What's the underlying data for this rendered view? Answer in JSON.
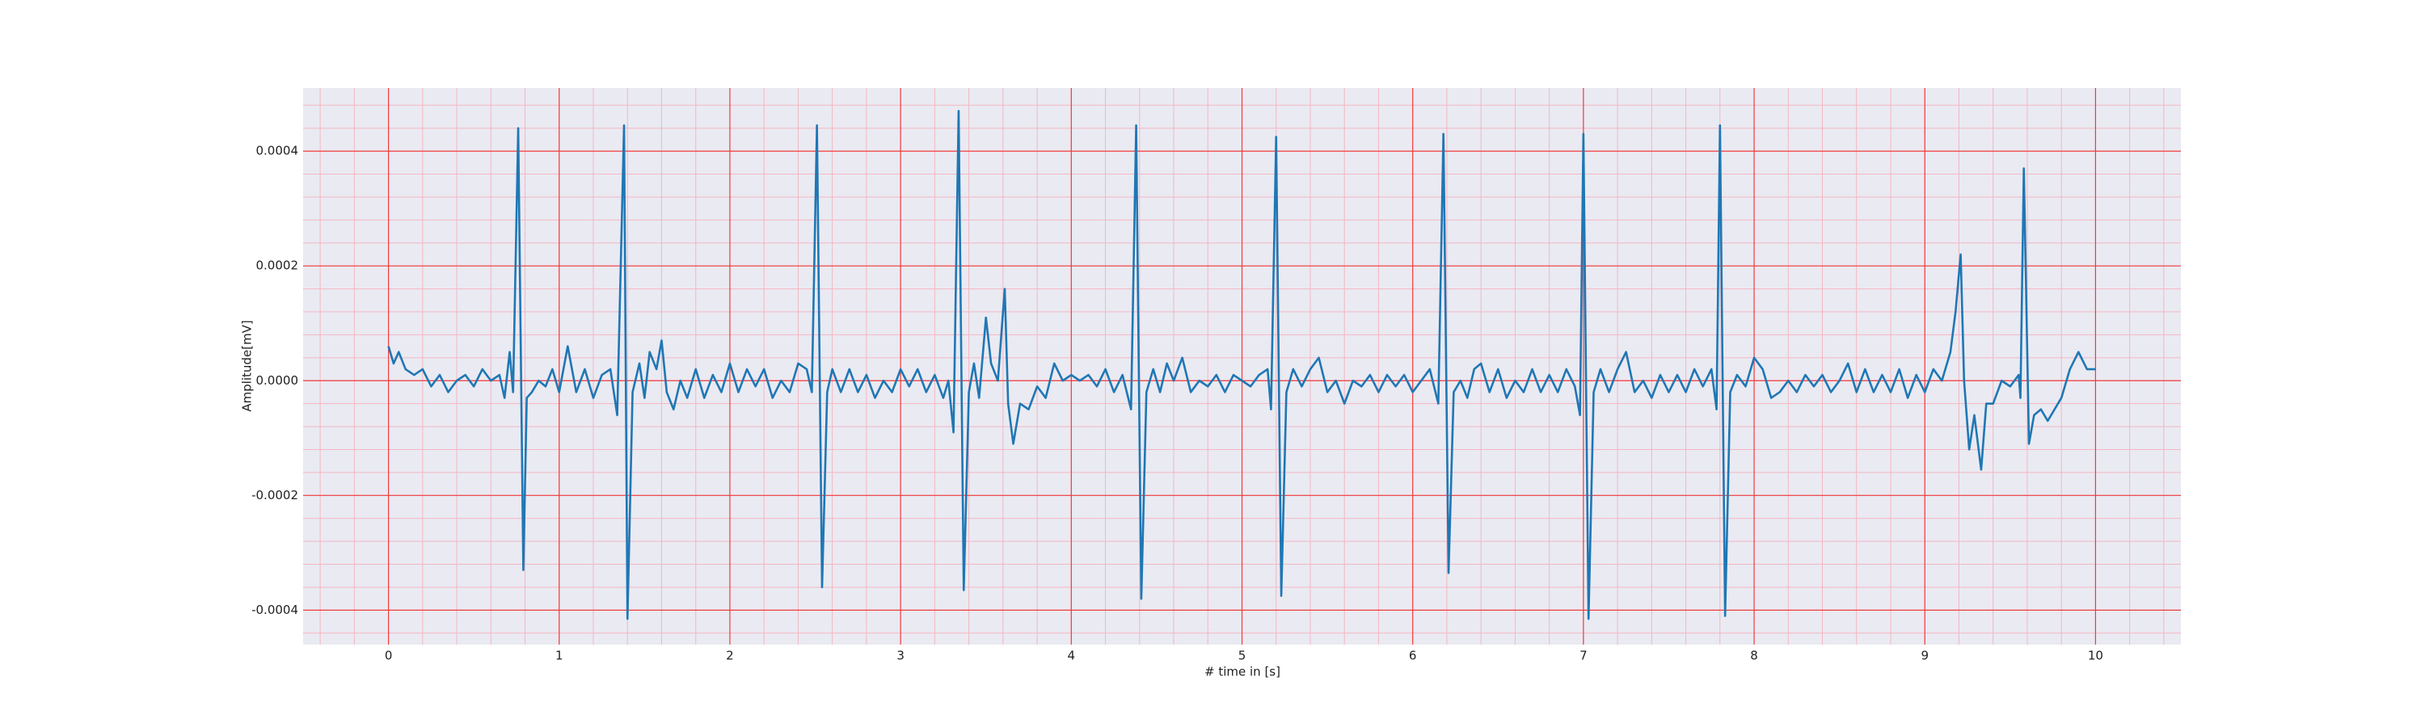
{
  "chart_data": {
    "type": "line",
    "xlabel": "# time in [s]",
    "ylabel": "Amplitude[mV]",
    "color": "#1f77b4",
    "x": [
      0,
      0.03,
      0.06,
      0.1,
      0.15,
      0.2,
      0.25,
      0.3,
      0.35,
      0.4,
      0.45,
      0.5,
      0.55,
      0.6,
      0.65,
      0.68,
      0.71,
      0.73,
      0.76,
      0.79,
      0.81,
      0.84,
      0.88,
      0.92,
      0.96,
      1.0,
      1.05,
      1.1,
      1.15,
      1.2,
      1.25,
      1.3,
      1.34,
      1.38,
      1.4,
      1.43,
      1.47,
      1.5,
      1.53,
      1.57,
      1.6,
      1.63,
      1.67,
      1.71,
      1.75,
      1.8,
      1.85,
      1.9,
      1.95,
      2.0,
      2.05,
      2.1,
      2.15,
      2.2,
      2.25,
      2.3,
      2.35,
      2.4,
      2.45,
      2.48,
      2.51,
      2.54,
      2.57,
      2.6,
      2.65,
      2.7,
      2.75,
      2.8,
      2.85,
      2.9,
      2.95,
      3.0,
      3.05,
      3.1,
      3.15,
      3.2,
      3.25,
      3.28,
      3.31,
      3.34,
      3.37,
      3.4,
      3.43,
      3.46,
      3.5,
      3.53,
      3.57,
      3.61,
      3.63,
      3.66,
      3.7,
      3.75,
      3.8,
      3.85,
      3.9,
      3.95,
      4.0,
      4.05,
      4.1,
      4.15,
      4.2,
      4.25,
      4.3,
      4.35,
      4.38,
      4.41,
      4.44,
      4.48,
      4.52,
      4.56,
      4.6,
      4.65,
      4.7,
      4.75,
      4.8,
      4.85,
      4.9,
      4.95,
      5.0,
      5.05,
      5.1,
      5.15,
      5.17,
      5.2,
      5.23,
      5.26,
      5.3,
      5.35,
      5.4,
      5.45,
      5.5,
      5.55,
      5.6,
      5.65,
      5.7,
      5.75,
      5.8,
      5.85,
      5.9,
      5.95,
      6.0,
      6.05,
      6.1,
      6.15,
      6.18,
      6.21,
      6.24,
      6.28,
      6.32,
      6.36,
      6.4,
      6.45,
      6.5,
      6.55,
      6.6,
      6.65,
      6.7,
      6.75,
      6.8,
      6.85,
      6.9,
      6.95,
      6.98,
      7.0,
      7.03,
      7.06,
      7.1,
      7.15,
      7.2,
      7.25,
      7.3,
      7.35,
      7.4,
      7.45,
      7.5,
      7.55,
      7.6,
      7.65,
      7.7,
      7.75,
      7.78,
      7.8,
      7.83,
      7.86,
      7.9,
      7.95,
      8.0,
      8.05,
      8.1,
      8.15,
      8.2,
      8.25,
      8.3,
      8.35,
      8.4,
      8.45,
      8.5,
      8.55,
      8.6,
      8.65,
      8.7,
      8.75,
      8.8,
      8.85,
      8.9,
      8.95,
      9.0,
      9.05,
      9.1,
      9.15,
      9.18,
      9.21,
      9.23,
      9.26,
      9.29,
      9.33,
      9.36,
      9.4,
      9.45,
      9.5,
      9.55,
      9.56,
      9.58,
      9.61,
      9.64,
      9.68,
      9.72,
      9.76,
      9.8,
      9.85,
      9.9,
      9.95,
      10.0
    ],
    "values": [
      6e-05,
      3e-05,
      5e-05,
      2e-05,
      1e-05,
      2e-05,
      -1e-05,
      1e-05,
      -2e-05,
      0.0,
      1e-05,
      -1e-05,
      2e-05,
      0.0,
      1e-05,
      -3e-05,
      5e-05,
      -2e-05,
      0.00044,
      -0.00033,
      -3e-05,
      -2e-05,
      0.0,
      -1e-05,
      2e-05,
      -2e-05,
      6e-05,
      -2e-05,
      2e-05,
      -3e-05,
      1e-05,
      2e-05,
      -6e-05,
      0.000445,
      -0.000415,
      -2e-05,
      3e-05,
      -3e-05,
      5e-05,
      2e-05,
      7e-05,
      -2e-05,
      -5e-05,
      0.0,
      -3e-05,
      2e-05,
      -3e-05,
      1e-05,
      -2e-05,
      3e-05,
      -2e-05,
      2e-05,
      -1e-05,
      2e-05,
      -3e-05,
      0.0,
      -2e-05,
      3e-05,
      2e-05,
      -2e-05,
      0.000445,
      -0.00036,
      -2e-05,
      2e-05,
      -2e-05,
      2e-05,
      -2e-05,
      1e-05,
      -3e-05,
      0.0,
      -2e-05,
      2e-05,
      -1e-05,
      2e-05,
      -2e-05,
      1e-05,
      -3e-05,
      0.0,
      -9e-05,
      0.00047,
      -0.000365,
      -2e-05,
      3e-05,
      -3e-05,
      0.00011,
      3e-05,
      0.0,
      0.00016,
      -4e-05,
      -0.00011,
      -4e-05,
      -5e-05,
      -1e-05,
      -3e-05,
      3e-05,
      0.0,
      1e-05,
      0.0,
      1e-05,
      -1e-05,
      2e-05,
      -2e-05,
      1e-05,
      -5e-05,
      0.000445,
      -0.00038,
      -2e-05,
      2e-05,
      -2e-05,
      3e-05,
      0.0,
      4e-05,
      -2e-05,
      0.0,
      -1e-05,
      1e-05,
      -2e-05,
      1e-05,
      0.0,
      -1e-05,
      1e-05,
      2e-05,
      -5e-05,
      0.000425,
      -0.000375,
      -2e-05,
      2e-05,
      -1e-05,
      2e-05,
      4e-05,
      -2e-05,
      0.0,
      -4e-05,
      0.0,
      -1e-05,
      1e-05,
      -2e-05,
      1e-05,
      -1e-05,
      1e-05,
      -2e-05,
      0.0,
      2e-05,
      -4e-05,
      0.00043,
      -0.000335,
      -2e-05,
      0.0,
      -3e-05,
      2e-05,
      3e-05,
      -2e-05,
      2e-05,
      -3e-05,
      0.0,
      -2e-05,
      2e-05,
      -2e-05,
      1e-05,
      -2e-05,
      2e-05,
      -1e-05,
      -6e-05,
      0.00043,
      -0.000415,
      -2e-05,
      2e-05,
      -2e-05,
      2e-05,
      5e-05,
      -2e-05,
      0.0,
      -3e-05,
      1e-05,
      -2e-05,
      1e-05,
      -2e-05,
      2e-05,
      -1e-05,
      2e-05,
      -5e-05,
      0.000445,
      -0.00041,
      -2e-05,
      1e-05,
      -1e-05,
      4e-05,
      2e-05,
      -3e-05,
      -2e-05,
      0.0,
      -2e-05,
      1e-05,
      -1e-05,
      1e-05,
      -2e-05,
      0.0,
      3e-05,
      -2e-05,
      2e-05,
      -2e-05,
      1e-05,
      -2e-05,
      2e-05,
      -3e-05,
      1e-05,
      -2e-05,
      2e-05,
      0.0,
      5e-05,
      0.00012,
      0.00022,
      0.0,
      -0.00012,
      -6e-05,
      -0.000155,
      -4e-05,
      -4e-05,
      0.0,
      -1e-05,
      1e-05,
      -3e-05,
      0.00037,
      -0.00011,
      -6e-05,
      -5e-05,
      -7e-05,
      -5e-05,
      -3e-05,
      2e-05,
      5e-05,
      2e-05,
      2e-05
    ],
    "xlim": [
      -0.5,
      10.5
    ],
    "xticks": [
      0,
      1,
      2,
      3,
      4,
      5,
      6,
      7,
      8,
      9,
      10
    ],
    "ylim": [
      -0.00046,
      0.00051
    ],
    "yticks": [
      -0.0004,
      -0.0002,
      {
        "value": 0,
        "label": "0.0000"
      },
      0.0002,
      0.0004
    ],
    "grid": true,
    "minor_grid": true
  }
}
